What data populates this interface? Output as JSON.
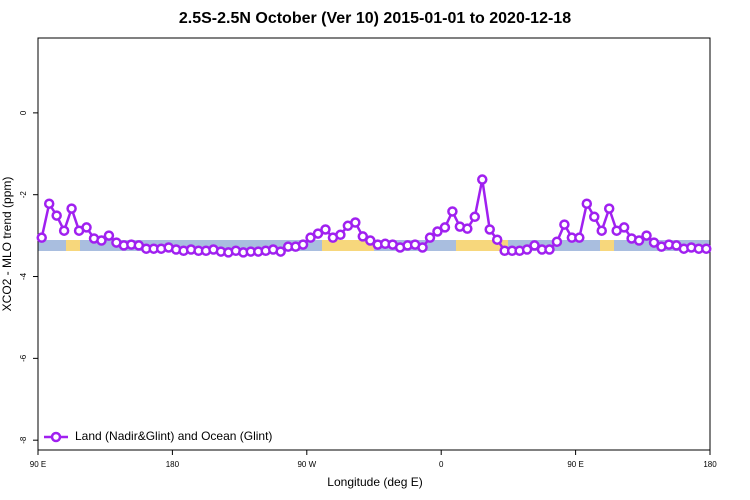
{
  "chart_data": {
    "type": "line",
    "title": "2.5S-2.5N October (Ver 10)   2015-01-01 to 2020-12-18",
    "x_label": "Longitude (deg E)",
    "y_label": "XCO2 - MLO trend (ppm)",
    "x": [
      92.5,
      97.5,
      102.5,
      107.5,
      112.5,
      117.5,
      122.5,
      127.5,
      132.5,
      137.5,
      142.5,
      147.5,
      152.5,
      157.5,
      162.5,
      167.5,
      172.5,
      177.5,
      182.5,
      187.5,
      192.5,
      197.5,
      202.5,
      207.5,
      212.5,
      217.5,
      222.5,
      227.5,
      232.5,
      237.5,
      242.5,
      247.5,
      252.5,
      257.5,
      262.5,
      267.5,
      272.5,
      277.5,
      282.5,
      287.5,
      292.5,
      297.5,
      302.5,
      307.5,
      312.5,
      317.5,
      322.5,
      327.5,
      332.5,
      337.5,
      342.5,
      347.5,
      352.5,
      357.5,
      362.5,
      367.5,
      372.5,
      377.5,
      382.5,
      387.5,
      392.5,
      397.5,
      402.5,
      407.5,
      412.5,
      417.5,
      422.5,
      427.5,
      432.5,
      437.5,
      442.5,
      447.5,
      452.5,
      457.5,
      462.5,
      467.5,
      472.5,
      477.5,
      482.5,
      487.5,
      492.5,
      497.5,
      502.5,
      507.5,
      512.5,
      517.5,
      522.5,
      527.5,
      532.5,
      537.5
    ],
    "series": [
      {
        "name": "Land (Nadir&Glint) and Ocean (Glint)",
        "color": "#a020f0",
        "values": [
          -3.05,
          -2.22,
          -2.51,
          -2.88,
          -2.34,
          -2.88,
          -2.8,
          -3.07,
          -3.12,
          -3.0,
          -3.17,
          -3.24,
          -3.22,
          -3.24,
          -3.32,
          -3.32,
          -3.32,
          -3.29,
          -3.34,
          -3.37,
          -3.34,
          -3.37,
          -3.37,
          -3.34,
          -3.39,
          -3.41,
          -3.37,
          -3.41,
          -3.39,
          -3.39,
          -3.37,
          -3.34,
          -3.39,
          -3.27,
          -3.27,
          -3.22,
          -3.05,
          -2.95,
          -2.85,
          -3.05,
          -2.98,
          -2.76,
          -2.68,
          -3.02,
          -3.12,
          -3.22,
          -3.2,
          -3.22,
          -3.29,
          -3.24,
          -3.22,
          -3.29,
          -3.05,
          -2.9,
          -2.8,
          -2.41,
          -2.78,
          -2.83,
          -2.54,
          -1.63,
          -2.85,
          -3.1,
          -3.37,
          -3.37,
          -3.37,
          -3.34,
          -3.24,
          -3.34,
          -3.34,
          -3.15,
          -2.73,
          -3.05,
          -3.05,
          -2.22,
          -2.54,
          -2.88,
          -2.34,
          -2.88,
          -2.8,
          -3.07,
          -3.12,
          -3.0,
          -3.17,
          -3.27,
          -3.22,
          -3.24,
          -3.32,
          -3.29,
          -3.32,
          -3.32
        ]
      }
    ],
    "xlim": [
      90,
      540
    ],
    "xticks": [
      {
        "value": 90,
        "label": "90 E"
      },
      180,
      {
        "value": 270,
        "label": "90 W"
      },
      {
        "value": 360,
        "label": "0"
      },
      {
        "value": 450,
        "label": "90 E"
      },
      {
        "value": 540,
        "label": "180"
      }
    ],
    "ylim": [
      -8.24,
      1.83
    ],
    "yticks": [
      0,
      -2,
      -4,
      -6,
      -8
    ],
    "legend": "bottom-left"
  }
}
